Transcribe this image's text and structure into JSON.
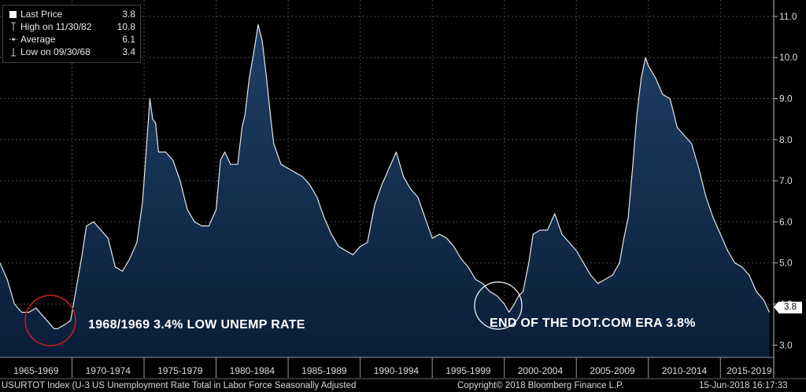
{
  "legend": {
    "last_price_label": "Last Price",
    "last_price_value": "3.8",
    "high_label": "High on 11/30/82",
    "high_value": "10.8",
    "average_label": "Average",
    "average_value": "6.1",
    "low_label": "Low on 09/30/68",
    "low_value": "3.4"
  },
  "annotations": {
    "left_text": "1968/1969 3.4% LOW UNEMP RATE",
    "right_text": "END OF THE DOT.COM ERA 3.8%"
  },
  "last_value_tag": "3.8",
  "footer": {
    "index_text": "USURTOT Index (U-3 US Unemployment Rate Total in Labor Force Seasonally Adjusted",
    "copyright": "Copyright© 2018 Bloomberg Finance L.P.",
    "timestamp": "15-Jun-2018 16:17:33"
  },
  "colors": {
    "background": "#000000",
    "area_top": "#1f3f66",
    "area_bottom": "#0a1e38",
    "line": "#e6e6e6",
    "grid": "#4a4a4a",
    "circle_left": "#c8201e",
    "circle_right": "#ffffff"
  },
  "chart_data": {
    "type": "area",
    "title": "",
    "xlabel": "",
    "ylabel": "",
    "y_ticks": [
      "3.0",
      "4.0",
      "5.0",
      "6.0",
      "7.0",
      "8.0",
      "9.0",
      "10.0",
      "11.0"
    ],
    "x_ticks": [
      "1965-1969",
      "1970-1974",
      "1975-1979",
      "1980-1984",
      "1985-1989",
      "1990-1994",
      "1995-1999",
      "2000-2004",
      "2005-2009",
      "2010-2014",
      "2015-2019"
    ],
    "xlim": [
      1965.0,
      2018.7
    ],
    "ylim": [
      2.7,
      11.4
    ],
    "grid": true,
    "series": [
      {
        "name": "Last Price",
        "x": [
          1965.0,
          1965.5,
          1966.0,
          1966.5,
          1967.0,
          1967.5,
          1968.0,
          1968.5,
          1968.75,
          1969.0,
          1969.5,
          1969.9,
          1970.3,
          1970.7,
          1971.0,
          1971.5,
          1972.0,
          1972.5,
          1973.0,
          1973.5,
          1974.0,
          1974.5,
          1974.9,
          1975.2,
          1975.4,
          1975.6,
          1975.8,
          1976.0,
          1976.5,
          1977.0,
          1977.5,
          1978.0,
          1978.5,
          1979.0,
          1979.5,
          1980.0,
          1980.3,
          1980.6,
          1981.0,
          1981.5,
          1981.8,
          1982.0,
          1982.3,
          1982.6,
          1982.92,
          1983.2,
          1983.5,
          1983.8,
          1984.0,
          1984.5,
          1985.0,
          1985.5,
          1986.0,
          1986.5,
          1987.0,
          1987.5,
          1988.0,
          1988.5,
          1989.0,
          1989.5,
          1990.0,
          1990.5,
          1991.0,
          1991.5,
          1992.0,
          1992.5,
          1993.0,
          1993.5,
          1994.0,
          1994.5,
          1995.0,
          1995.5,
          1996.0,
          1996.5,
          1997.0,
          1997.5,
          1998.0,
          1998.5,
          1999.0,
          1999.5,
          2000.0,
          2000.33,
          2000.7,
          2001.0,
          2001.3,
          2001.7,
          2002.0,
          2002.5,
          2003.0,
          2003.5,
          2004.0,
          2004.5,
          2005.0,
          2005.5,
          2006.0,
          2006.5,
          2007.0,
          2007.5,
          2008.0,
          2008.3,
          2008.6,
          2008.9,
          2009.2,
          2009.5,
          2009.8,
          2010.0,
          2010.5,
          2011.0,
          2011.5,
          2012.0,
          2012.5,
          2013.0,
          2013.5,
          2014.0,
          2014.5,
          2015.0,
          2015.5,
          2016.0,
          2016.5,
          2017.0,
          2017.5,
          2018.0,
          2018.4
        ],
        "values": [
          5.0,
          4.6,
          4.0,
          3.8,
          3.8,
          3.9,
          3.7,
          3.5,
          3.4,
          3.4,
          3.5,
          3.6,
          4.4,
          5.2,
          5.9,
          6.0,
          5.8,
          5.6,
          4.9,
          4.8,
          5.1,
          5.5,
          6.5,
          8.0,
          9.0,
          8.5,
          8.4,
          7.7,
          7.7,
          7.5,
          7.0,
          6.3,
          6.0,
          5.9,
          5.9,
          6.3,
          7.5,
          7.7,
          7.4,
          7.4,
          8.3,
          8.6,
          9.5,
          10.1,
          10.8,
          10.4,
          9.5,
          8.5,
          7.9,
          7.4,
          7.3,
          7.2,
          7.1,
          6.9,
          6.6,
          6.1,
          5.7,
          5.4,
          5.3,
          5.2,
          5.4,
          5.5,
          6.4,
          6.9,
          7.3,
          7.7,
          7.1,
          6.8,
          6.6,
          6.1,
          5.6,
          5.7,
          5.6,
          5.4,
          5.1,
          4.9,
          4.6,
          4.5,
          4.3,
          4.2,
          4.0,
          3.8,
          4.0,
          4.2,
          4.3,
          5.0,
          5.7,
          5.8,
          5.8,
          6.2,
          5.7,
          5.5,
          5.3,
          5.0,
          4.7,
          4.5,
          4.6,
          4.7,
          5.0,
          5.6,
          6.1,
          7.3,
          8.6,
          9.5,
          10.0,
          9.8,
          9.5,
          9.1,
          9.0,
          8.3,
          8.1,
          7.9,
          7.3,
          6.6,
          6.1,
          5.7,
          5.3,
          5.0,
          4.9,
          4.7,
          4.3,
          4.1,
          3.8
        ]
      }
    ]
  }
}
